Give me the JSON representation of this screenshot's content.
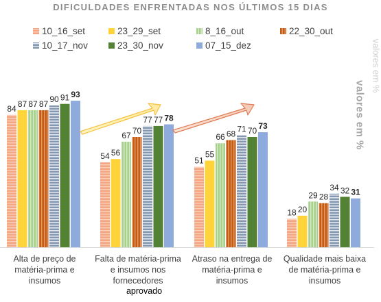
{
  "chart_data": {
    "type": "bar",
    "title": "DIFICULDADES ENFRENTADAS NOS ÚLTIMOS 15 DIAS",
    "ylabel": "valores em %",
    "categories": [
      "Alta de preço de matéria-prima e insumos",
      "Falta de matéria-prima e insumos nos fornecedores",
      "Atraso na entrega de matéria-prima e insumos",
      "Qualidade mais baixa de matéria-prima e insumos"
    ],
    "series": [
      {
        "name": "10_16_set",
        "color": "#F4A582",
        "values": [
          84,
          54,
          51,
          18
        ]
      },
      {
        "name": "23_29_set",
        "color": "#FFD43B",
        "values": [
          87,
          56,
          55,
          20
        ]
      },
      {
        "name": "8_16_out",
        "color": "#A9D18E",
        "values": [
          87,
          67,
          66,
          29
        ]
      },
      {
        "name": "22_30_out",
        "color": "#C55A11",
        "values": [
          87,
          70,
          68,
          28
        ]
      },
      {
        "name": "10_17_nov",
        "color": "#8497B0",
        "values": [
          90,
          77,
          71,
          34
        ]
      },
      {
        "name": "23_30_nov",
        "color": "#548235",
        "values": [
          91,
          77,
          70,
          32
        ]
      },
      {
        "name": "07_15_dez",
        "color": "#8FAADC",
        "values": [
          93,
          78,
          73,
          31
        ]
      }
    ],
    "ylim": [
      0,
      100
    ],
    "grid": false,
    "legend_position": "top"
  },
  "labels": {
    "category_lines": [
      [
        "Alta de preço de",
        "matéria-prima e",
        "insumos"
      ],
      [
        "Falta de matéria-prima",
        "e insumos nos",
        "fornecedores"
      ],
      [
        "Atraso na entrega de",
        "matéria-prima e",
        "insumos"
      ],
      [
        "Qualidade mais baixa",
        "de matéria-prima e",
        "insumos"
      ]
    ],
    "footnote": "aprovado",
    "ghost_axis_text": "valores em %"
  },
  "arrows": [
    {
      "color": "#F5C242"
    },
    {
      "color": "#E07B54"
    }
  ]
}
